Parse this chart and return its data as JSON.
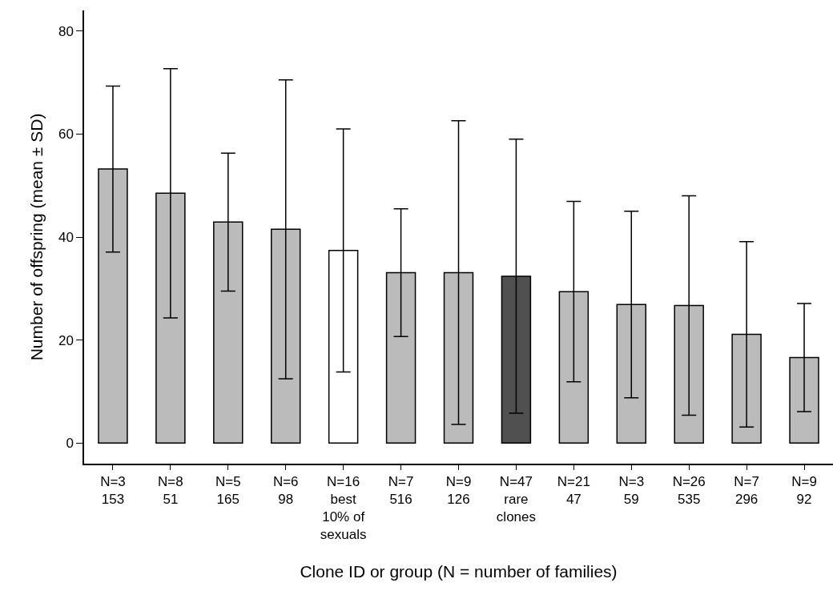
{
  "chart_data": {
    "type": "bar",
    "xlabel": "Clone ID or group (N = number of families)",
    "ylabel": "Number of offspring (mean ± SD)",
    "categories": [
      "N=3\n153",
      "N=8\n51",
      "N=5\n165",
      "N=6\n98",
      "N=16\nbest\n10% of\nsexuals",
      "N=7\n516",
      "N=9\n126",
      "N=47\nrare\nclones",
      "N=21\n47",
      "N=3\n59",
      "N=26\n535",
      "N=7\n296",
      "N=9\n92"
    ],
    "values": [
      53.2,
      48.5,
      42.9,
      41.5,
      37.4,
      33.1,
      33.1,
      32.4,
      29.4,
      26.9,
      26.7,
      21.1,
      16.6
    ],
    "errors": [
      16.1,
      24.2,
      13.4,
      29.0,
      23.6,
      12.4,
      29.5,
      26.6,
      17.5,
      18.1,
      21.3,
      18.0,
      10.5
    ],
    "colors": [
      "#bbbbbb",
      "#bbbbbb",
      "#bbbbbb",
      "#bbbbbb",
      "#ffffff",
      "#bbbbbb",
      "#bbbbbb",
      "#505050",
      "#bbbbbb",
      "#bbbbbb",
      "#bbbbbb",
      "#bbbbbb",
      "#bbbbbb"
    ],
    "ylim": [
      -4,
      84
    ],
    "yticks": [
      0,
      20,
      40,
      60,
      80
    ],
    "grid": false,
    "legend": false
  }
}
